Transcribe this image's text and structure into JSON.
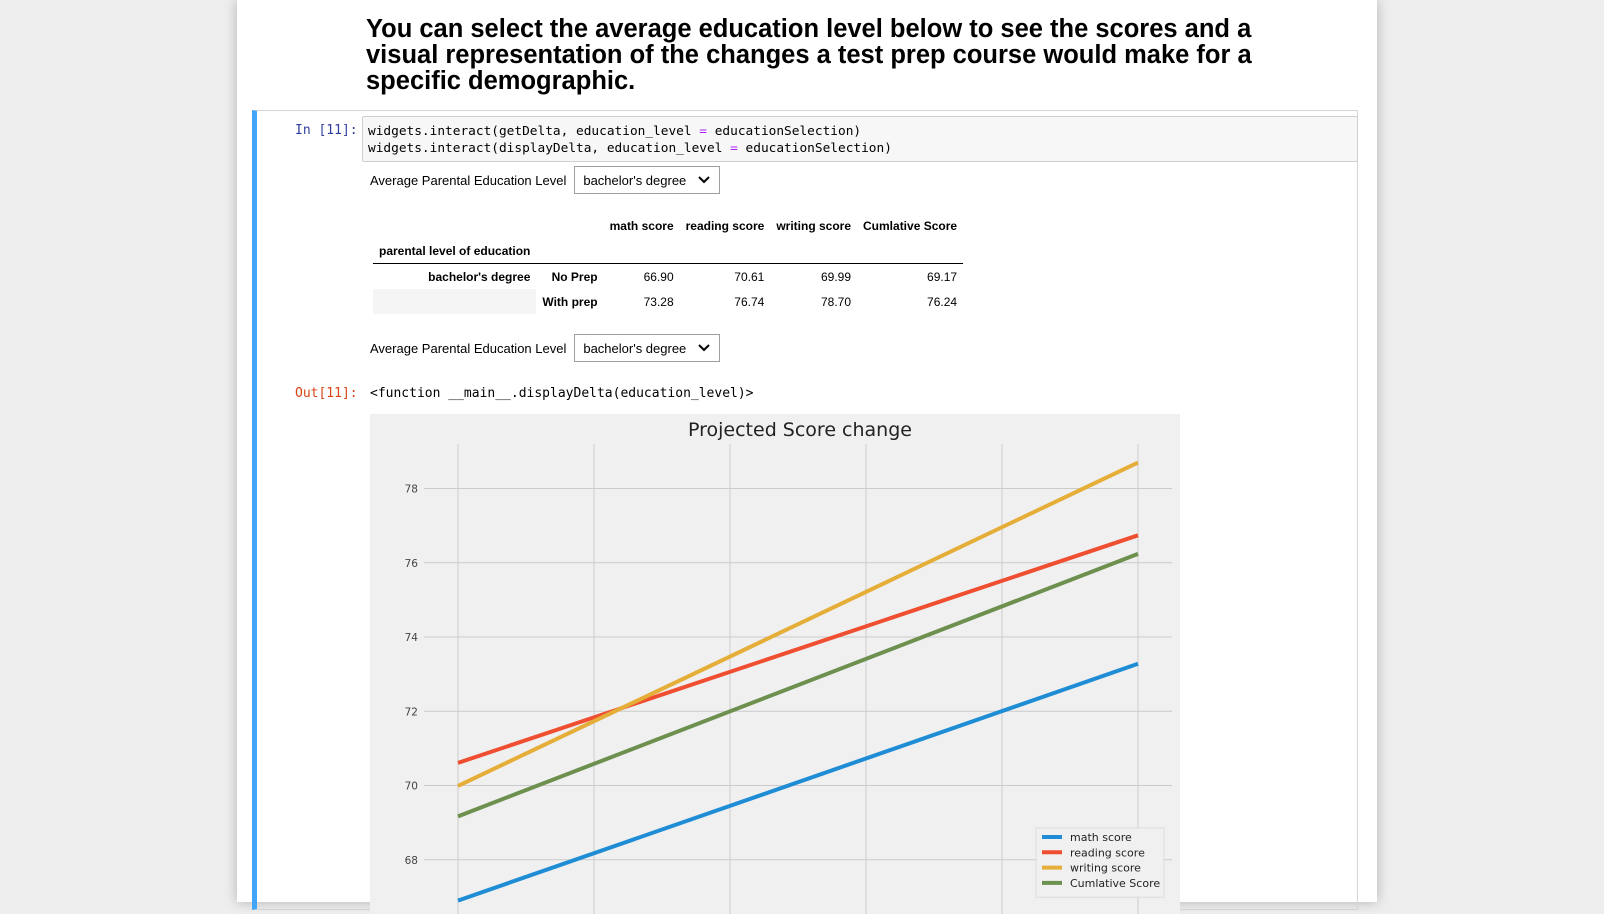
{
  "heading": "You can select the average education level below to see the scores and a visual representation of the changes a test prep course would make for a specific demographic.",
  "cell": {
    "in_prompt": "In [11]:",
    "out_prompt": "Out[11]:",
    "code_lines": [
      {
        "pre": "widgets.interact(getDelta, education_level ",
        "op": "=",
        "post": " educationSelection)"
      },
      {
        "pre": "widgets.interact(displayDelta, education_level ",
        "op": "=",
        "post": " educationSelection)"
      }
    ],
    "output_text": "<function __main__.displayDelta(education_level)>"
  },
  "widget1": {
    "label": "Average Parental Education Level",
    "value": "bachelor's degree"
  },
  "widget2": {
    "label": "Average Parental Education Level",
    "value": "bachelor's degree"
  },
  "table": {
    "index_name": "parental level of education",
    "columns": [
      "math score",
      "reading score",
      "writing score",
      "Cumlative Score"
    ],
    "group": "bachelor's degree",
    "rows": [
      {
        "label": "No Prep",
        "values": [
          "66.90",
          "70.61",
          "69.99",
          "69.17"
        ]
      },
      {
        "label": "With prep",
        "values": [
          "73.28",
          "76.74",
          "78.70",
          "76.24"
        ]
      }
    ]
  },
  "chart_data": {
    "type": "line",
    "title": "Projected Score change",
    "x": [
      0,
      1
    ],
    "xlim": [
      -0.05,
      1.05
    ],
    "ylim": [
      66,
      79.2
    ],
    "yticks": [
      68,
      70,
      72,
      74,
      76,
      78
    ],
    "grid": true,
    "legend_position": "bottom-right",
    "series": [
      {
        "name": "math score",
        "values": [
          66.9,
          73.28
        ],
        "color": "#1f8dd6"
      },
      {
        "name": "reading score",
        "values": [
          70.61,
          76.74
        ],
        "color": "#f04e31"
      },
      {
        "name": "writing score",
        "values": [
          69.99,
          78.7
        ],
        "color": "#e5ae38"
      },
      {
        "name": "Cumlative Score",
        "values": [
          69.17,
          76.24
        ],
        "color": "#6d904f"
      }
    ]
  }
}
